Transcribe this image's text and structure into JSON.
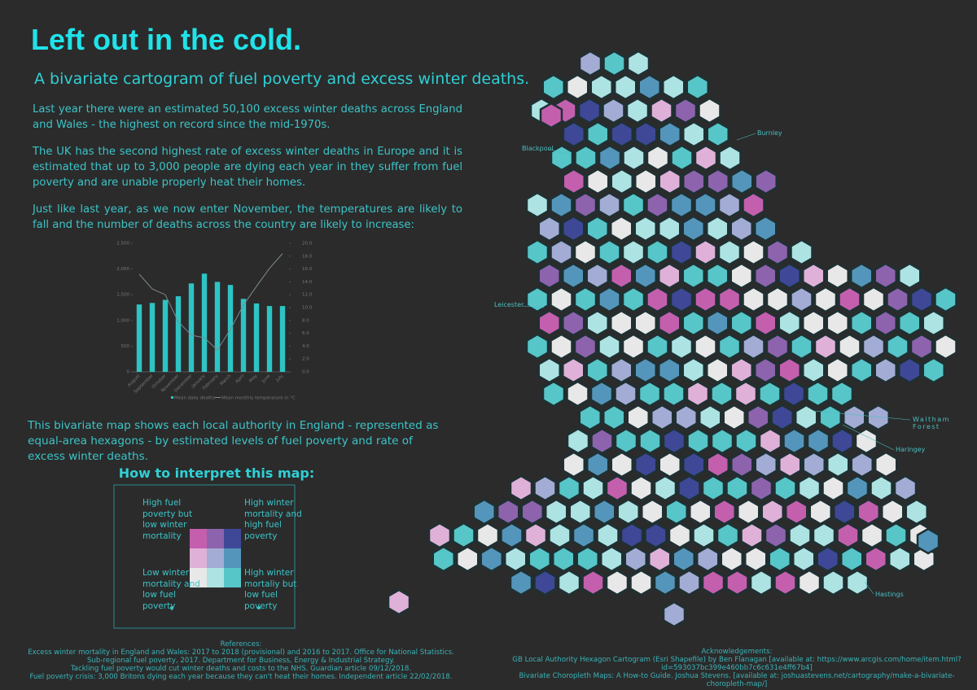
{
  "header": {
    "title": "Left out in the cold.",
    "subtitle": "A bivariate cartogram of fuel poverty and excess winter deaths."
  },
  "intro": [
    "Last year there were an estimated 50,100 excess winter deaths across England and Wales - the highest on record since the mid-1970s.",
    "The UK has the second highest rate of excess winter deaths in Europe and it is estimated that up to 3,000 people are dying each year in they suffer from fuel poverty and are unable properly heat their homes.",
    "Just like last year, as we now enter November, the temperatures are likely to fall and the number of deaths across the country are likely to increase:"
  ],
  "chart_data": {
    "type": "bar",
    "categories": [
      "August",
      "September",
      "October",
      "November",
      "December",
      "January",
      "February",
      "March",
      "April",
      "May",
      "June",
      "July"
    ],
    "series": [
      {
        "name": "Mean daily deaths",
        "color": "#2ec4c4",
        "type": "bar",
        "values": [
          1310,
          1340,
          1400,
          1470,
          1720,
          1910,
          1750,
          1690,
          1420,
          1330,
          1280,
          1280
        ]
      },
      {
        "name": "Mean monthly temperature in °C",
        "color": "#7d8b92",
        "type": "line",
        "axis": "y2",
        "values": [
          15.2,
          12.9,
          12.0,
          7.8,
          5.7,
          5.3,
          3.4,
          6.6,
          10.4,
          13.3,
          16.1,
          18.4
        ]
      }
    ],
    "ylim": [
      0,
      2500
    ],
    "yticks": [
      0,
      500,
      {
        "value": 1000,
        "label": "1,000"
      },
      {
        "value": 1500,
        "label": "1,500"
      },
      {
        "value": 2000,
        "label": "2,000"
      },
      {
        "value": 2500,
        "label": "2,500"
      }
    ],
    "y2lim": [
      0,
      20
    ],
    "y2ticks": [
      {
        "value": 0,
        "label": "0.0"
      },
      {
        "value": 2,
        "label": "2.0"
      },
      {
        "value": 4,
        "label": "4.0"
      },
      {
        "value": 6,
        "label": "6.0"
      },
      {
        "value": 8,
        "label": "8.0"
      },
      {
        "value": 10,
        "label": "10.0"
      },
      {
        "value": 12,
        "label": "12.0"
      },
      {
        "value": 14,
        "label": "14.0"
      },
      {
        "value": 16,
        "label": "16.0"
      },
      {
        "value": 18,
        "label": "18.0"
      },
      {
        "value": 20,
        "label": "20.0"
      }
    ]
  },
  "description": "This bivariate map shows each local authority in England - represented as equal-area hexagons -  by estimated levels of fuel poverty and rate of excess winter deaths.",
  "legend": {
    "title": "How to interpret this map:",
    "top_left": "High fuel poverty but low winter mortality",
    "top_right": "High winter mortality and high fuel poverty",
    "bottom_left": "Low winter mortality and low fuel poverty",
    "bottom_right": "High winter mortaliy but low fuel poverty",
    "colors": [
      "#c45fae",
      "#8d63ad",
      "#3e4897",
      "#dfb1d8",
      "#a3acd4",
      "#5496bb",
      "#e8e8e8",
      "#ade3e3",
      "#56c6c8"
    ]
  },
  "map": {
    "labels": [
      "Blackpool",
      "Burnley",
      "Leicester",
      "Waltham Forest",
      "Haringey",
      "Hastings"
    ]
  },
  "references": {
    "title": "References:",
    "items": [
      "Excess winter mortality in England and Wales: 2017 to 2018 (provisional) and 2016 to 2017. Office for National Statistics.",
      "Sub-regional fuel poverty, 2017. Department for Business, Energy & Industrial Strategy.",
      "Tackling fuel poverty would cut winter deaths and costs to the NHS. Guardian article 09/12/2018.",
      "Fuel poverty crisis: 3,000 Britons dying each year because they can't heat their homes. Independent article 22/02/2018."
    ]
  },
  "acknowledgements": {
    "title": "Acknowledgements:",
    "items": [
      "GB Local Authority Hexagon Cartogram (Esri Shapefile) by Ben Flanagan [available at: https://www.arcgis.com/home/item.html?id=593037bc399e460bb7c6c631e4ff67b4]",
      "Bivariate Choropleth Maps: A How-to Guide. Joshua Stevens. [available at: joshuastevens.net/cartography/make-a-bivariate-choropleth-map/]"
    ]
  }
}
